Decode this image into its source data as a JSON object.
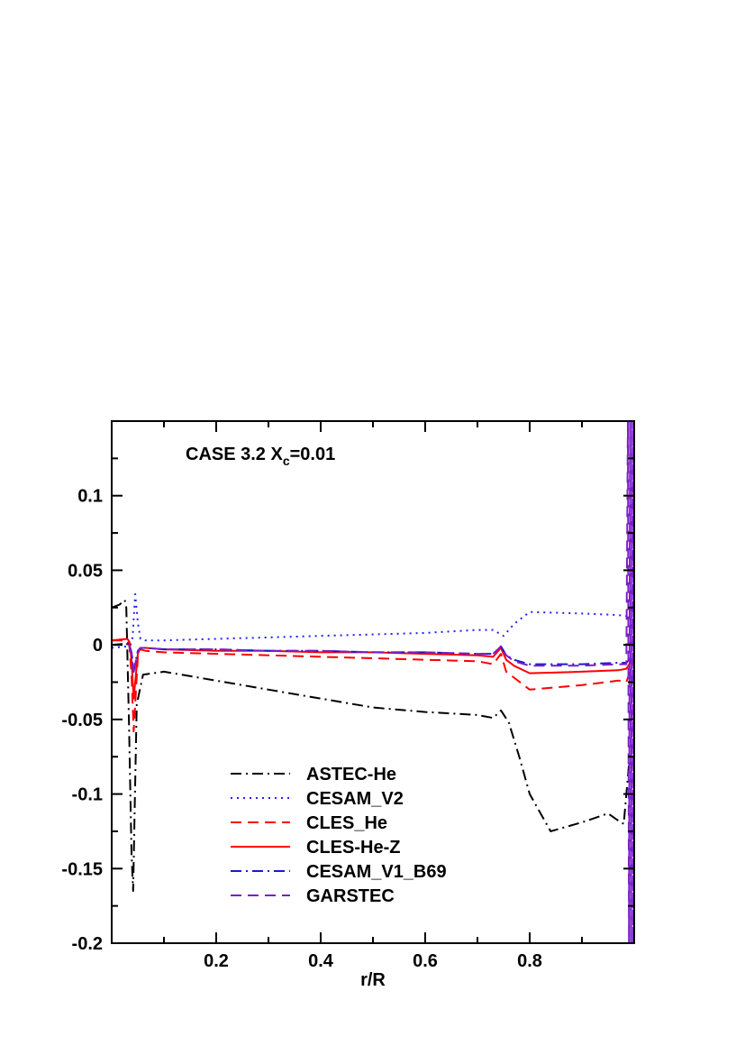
{
  "chart_data": {
    "type": "line",
    "title": "CASE 3.2 X",
    "title_subscript": "c",
    "title_suffix": "=0.01",
    "xlabel": "r/R",
    "ylabel": "",
    "xlim": [
      0.0,
      1.0
    ],
    "ylim": [
      -0.2,
      0.15
    ],
    "xticks": [
      "0.2",
      "0.4",
      "0.6",
      "0.8"
    ],
    "yticks": [
      "0.1",
      "0.05",
      "0",
      "-0.05",
      "-0.1",
      "-0.15",
      "-0.2"
    ],
    "legend_position": "bottom-left",
    "grid": false,
    "series": [
      {
        "name": "ASTEC-He",
        "color": "#000000",
        "dash": "dashdot",
        "x": [
          0.0,
          0.015,
          0.025,
          0.028,
          0.033,
          0.038,
          0.041,
          0.044,
          0.048,
          0.06,
          0.1,
          0.2,
          0.3,
          0.4,
          0.5,
          0.6,
          0.7,
          0.73,
          0.745,
          0.76,
          0.78,
          0.8,
          0.84,
          0.9,
          0.95,
          0.97,
          0.98,
          0.99,
          1.0
        ],
        "y": [
          0.025,
          0.027,
          0.03,
          0.025,
          -0.05,
          -0.14,
          -0.165,
          -0.11,
          -0.04,
          -0.02,
          -0.018,
          -0.024,
          -0.03,
          -0.036,
          -0.042,
          -0.045,
          -0.047,
          -0.049,
          -0.044,
          -0.052,
          -0.075,
          -0.1,
          -0.125,
          -0.119,
          -0.113,
          -0.118,
          -0.12,
          -0.08,
          -0.085
        ]
      },
      {
        "name": "CESAM_V2",
        "color": "#2222ff",
        "dash": "dot",
        "x": [
          0.0,
          0.03,
          0.036,
          0.04,
          0.045,
          0.05,
          0.055,
          0.065,
          0.1,
          0.2,
          0.3,
          0.4,
          0.5,
          0.6,
          0.7,
          0.73,
          0.75,
          0.77,
          0.8,
          0.9,
          0.97,
          0.99,
          1.0
        ],
        "y": [
          -0.002,
          -0.001,
          0.0,
          0.005,
          0.034,
          0.015,
          0.004,
          0.003,
          0.003,
          0.004,
          0.005,
          0.006,
          0.007,
          0.008,
          0.01,
          0.01,
          0.006,
          0.014,
          0.022,
          0.021,
          0.02,
          0.019,
          0.012
        ]
      },
      {
        "name": "CLES_He",
        "color": "#ff0000",
        "dash": "dash",
        "x": [
          0.0,
          0.03,
          0.034,
          0.038,
          0.042,
          0.045,
          0.05,
          0.055,
          0.065,
          0.1,
          0.2,
          0.3,
          0.4,
          0.5,
          0.6,
          0.7,
          0.73,
          0.745,
          0.755,
          0.77,
          0.8,
          0.9,
          0.97,
          0.985,
          1.0
        ],
        "y": [
          0.003,
          0.003,
          -0.001,
          -0.02,
          -0.058,
          -0.04,
          -0.008,
          -0.003,
          -0.004,
          -0.005,
          -0.006,
          -0.007,
          -0.008,
          -0.009,
          -0.01,
          -0.011,
          -0.013,
          -0.006,
          -0.018,
          -0.022,
          -0.03,
          -0.027,
          -0.024,
          -0.025,
          -0.01
        ]
      },
      {
        "name": "CLES-He-Z",
        "color": "#ff0000",
        "dash": "solid",
        "x": [
          0.0,
          0.03,
          0.034,
          0.038,
          0.042,
          0.045,
          0.05,
          0.055,
          0.065,
          0.1,
          0.2,
          0.3,
          0.4,
          0.5,
          0.6,
          0.7,
          0.73,
          0.745,
          0.755,
          0.77,
          0.8,
          0.9,
          0.97,
          0.985,
          1.0
        ],
        "y": [
          0.003,
          0.004,
          0.002,
          -0.01,
          -0.036,
          -0.025,
          -0.006,
          -0.002,
          -0.002,
          -0.003,
          -0.004,
          -0.004,
          -0.005,
          -0.005,
          -0.006,
          -0.007,
          -0.008,
          -0.002,
          -0.01,
          -0.014,
          -0.019,
          -0.018,
          -0.017,
          -0.016,
          -0.008
        ]
      },
      {
        "name": "CESAM_V1_B69",
        "color": "#1a1acc",
        "dash": "dashdot",
        "x": [
          0.0,
          0.03,
          0.034,
          0.038,
          0.042,
          0.045,
          0.05,
          0.055,
          0.065,
          0.1,
          0.2,
          0.3,
          0.4,
          0.5,
          0.6,
          0.7,
          0.73,
          0.745,
          0.755,
          0.77,
          0.8,
          0.9,
          0.97,
          0.985,
          1.0
        ],
        "y": [
          0.0,
          0.001,
          0.0,
          -0.005,
          -0.018,
          -0.012,
          -0.004,
          -0.002,
          -0.002,
          -0.003,
          -0.003,
          -0.004,
          -0.004,
          -0.005,
          -0.005,
          -0.006,
          -0.006,
          -0.001,
          -0.007,
          -0.01,
          -0.013,
          -0.013,
          -0.012,
          -0.012,
          -0.006
        ]
      },
      {
        "name": "GARSTEC",
        "color": "#7a1fc9",
        "dash": "dash",
        "x": [
          0.0,
          0.03,
          0.034,
          0.038,
          0.042,
          0.045,
          0.05,
          0.055,
          0.065,
          0.1,
          0.2,
          0.3,
          0.4,
          0.5,
          0.6,
          0.7,
          0.73,
          0.745,
          0.755,
          0.77,
          0.8,
          0.9,
          0.97,
          0.985,
          0.988,
          0.99,
          0.992,
          0.994,
          0.996,
          0.998,
          1.0
        ],
        "y": [
          0.0,
          0.0,
          -0.001,
          -0.006,
          -0.02,
          -0.013,
          -0.004,
          -0.002,
          -0.002,
          -0.003,
          -0.003,
          -0.004,
          -0.004,
          -0.005,
          -0.005,
          -0.006,
          -0.006,
          -0.001,
          -0.007,
          -0.011,
          -0.014,
          -0.014,
          -0.013,
          -0.013,
          0.15,
          -0.2,
          0.15,
          -0.2,
          0.15,
          -0.2,
          0.15
        ]
      }
    ]
  }
}
